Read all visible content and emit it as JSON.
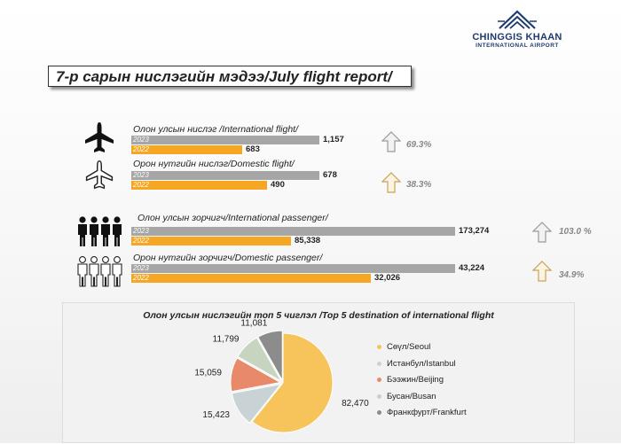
{
  "logo": {
    "line1": "CHINGGIS KHAAN",
    "line2": "INTERNATIONAL AIRPORT"
  },
  "title": "7-р сарын нислэгийн мэдээ/July flight report/",
  "stats": [
    {
      "id": "intl-flight",
      "label": "Олон улсын нислэг /International flight/",
      "icon": "airplane-filled-icon",
      "rows": [
        {
          "year": "2023",
          "value": 1157,
          "display": "1,157",
          "color": "#a6a6a6"
        },
        {
          "year": "2022",
          "value": 683,
          "display": "683",
          "color": "#f5a623"
        }
      ],
      "change": "69.3%"
    },
    {
      "id": "dom-flight",
      "label": "Орон нутгийн нислэг/Domestic flight/",
      "icon": "airplane-outline-icon",
      "rows": [
        {
          "year": "2023",
          "value": 678,
          "display": "678",
          "color": "#a6a6a6"
        },
        {
          "year": "2022",
          "value": 490,
          "display": "490",
          "color": "#f5a623"
        }
      ],
      "change": "38.3%"
    },
    {
      "id": "intl-pax",
      "label": "Олон улсын зорчигч/International passenger/",
      "icon": "people-filled-icon",
      "rows": [
        {
          "year": "2023",
          "value": 173274,
          "display": "173,274",
          "color": "#a6a6a6"
        },
        {
          "year": "2022",
          "value": 85338,
          "display": "85,338",
          "color": "#f5a623"
        }
      ],
      "change": "103.0 %"
    },
    {
      "id": "dom-pax",
      "label": "Орон нутгийн зорчигч/Domestic passenger/",
      "icon": "people-outline-icon",
      "rows": [
        {
          "year": "2023",
          "value": 43224,
          "display": "43,224",
          "color": "#a6a6a6"
        },
        {
          "year": "2022",
          "value": 32026,
          "display": "32,026",
          "color": "#f5a623"
        }
      ],
      "change": "34.9%"
    }
  ],
  "chart_data": {
    "type": "pie",
    "title": "Олон улсын нислэгийн  топ 5 чиглэл /Top 5 destination  of international  flight",
    "categories": [
      "Сөүл/Seoul",
      "Истанбул/Istanbul",
      "Бээжин/Beijing",
      "Бусан/Busan",
      "Франкфурт/Frankfurt"
    ],
    "values": [
      82470,
      15423,
      15059,
      11799,
      11081
    ],
    "value_labels": [
      "82,470",
      "15,423",
      "15,059",
      "11,799",
      "11,081"
    ],
    "colors": [
      "#f7c35b",
      "#c9d3d6",
      "#e8896a",
      "#c7d4bf",
      "#8c8c8c"
    ],
    "legend": "right"
  }
}
